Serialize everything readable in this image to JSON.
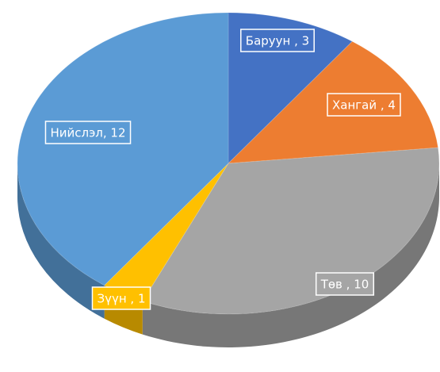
{
  "chart_data": {
    "type": "pie",
    "values": [
      3,
      4,
      10,
      1,
      12
    ],
    "value_labels": [
      "Баруун , 3",
      "Хангай , 4",
      "Төв , 10",
      "Зүүн , 1",
      "Нийслэл, 12"
    ],
    "colors": [
      "#4472c4",
      "#ed7d31",
      "#a5a5a5",
      "#ffc000",
      "#5b9bd5"
    ]
  }
}
